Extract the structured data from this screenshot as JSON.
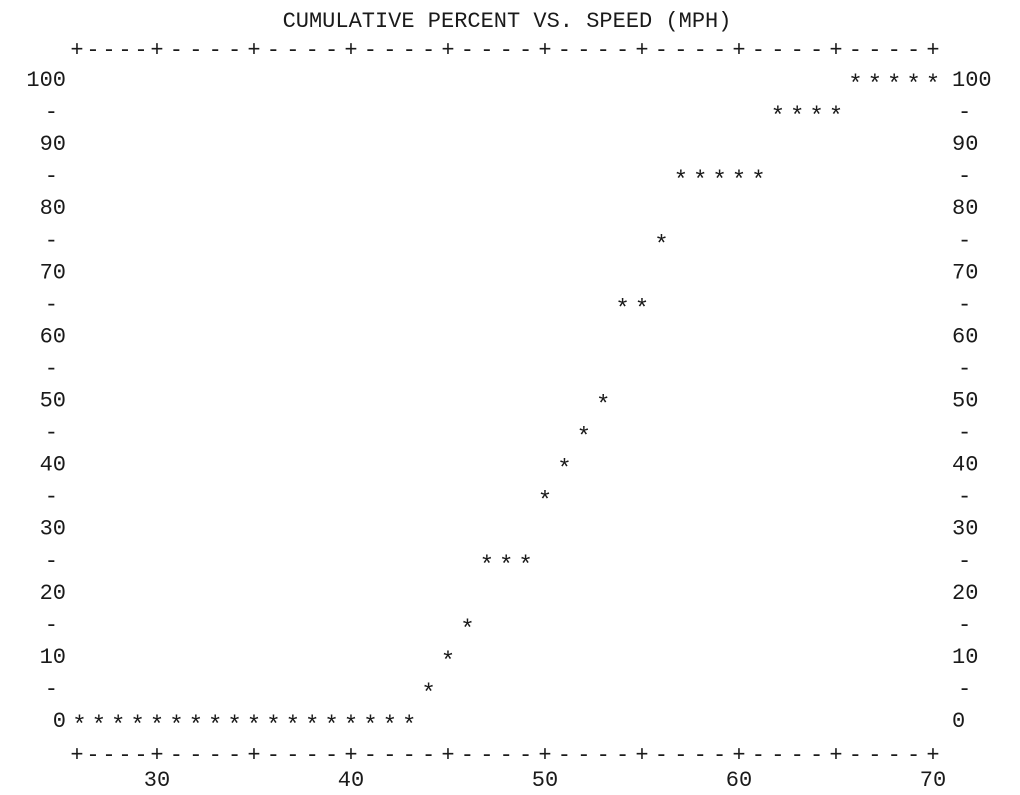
{
  "chart_data": {
    "type": "scatter",
    "title": "CUMULATIVE PERCENT VS. SPEED (MPH)",
    "xlabel": "",
    "ylabel": "",
    "xlim": [
      25,
      71
    ],
    "ylim": [
      -5,
      105
    ],
    "x_ticks": [
      30,
      40,
      50,
      60,
      70
    ],
    "y_ticks": [
      0,
      10,
      20,
      30,
      40,
      50,
      60,
      70,
      80,
      90,
      100
    ],
    "grid": false,
    "legend": "none",
    "marker": "*",
    "points": [
      {
        "x": 26,
        "y": 0
      },
      {
        "x": 27,
        "y": 0
      },
      {
        "x": 28,
        "y": 0
      },
      {
        "x": 29,
        "y": 0
      },
      {
        "x": 30,
        "y": 0
      },
      {
        "x": 31,
        "y": 0
      },
      {
        "x": 32,
        "y": 0
      },
      {
        "x": 33,
        "y": 0
      },
      {
        "x": 34,
        "y": 0
      },
      {
        "x": 35,
        "y": 0
      },
      {
        "x": 36,
        "y": 0
      },
      {
        "x": 37,
        "y": 0
      },
      {
        "x": 38,
        "y": 0
      },
      {
        "x": 39,
        "y": 0
      },
      {
        "x": 40,
        "y": 0
      },
      {
        "x": 41,
        "y": 0
      },
      {
        "x": 42,
        "y": 0
      },
      {
        "x": 43,
        "y": 0
      },
      {
        "x": 44,
        "y": 5
      },
      {
        "x": 45,
        "y": 10
      },
      {
        "x": 46,
        "y": 15
      },
      {
        "x": 47,
        "y": 25
      },
      {
        "x": 48,
        "y": 25
      },
      {
        "x": 49,
        "y": 25
      },
      {
        "x": 50,
        "y": 35
      },
      {
        "x": 51,
        "y": 40
      },
      {
        "x": 52,
        "y": 45
      },
      {
        "x": 53,
        "y": 50
      },
      {
        "x": 54,
        "y": 65
      },
      {
        "x": 55,
        "y": 65
      },
      {
        "x": 56,
        "y": 75
      },
      {
        "x": 57,
        "y": 85
      },
      {
        "x": 58,
        "y": 85
      },
      {
        "x": 59,
        "y": 85
      },
      {
        "x": 60,
        "y": 85
      },
      {
        "x": 61,
        "y": 85
      },
      {
        "x": 62,
        "y": 95
      },
      {
        "x": 63,
        "y": 95
      },
      {
        "x": 64,
        "y": 95
      },
      {
        "x": 65,
        "y": 95
      },
      {
        "x": 66,
        "y": 100
      },
      {
        "x": 67,
        "y": 100
      },
      {
        "x": 68,
        "y": 100
      },
      {
        "x": 69,
        "y": 100
      },
      {
        "x": 70,
        "y": 100
      }
    ]
  }
}
